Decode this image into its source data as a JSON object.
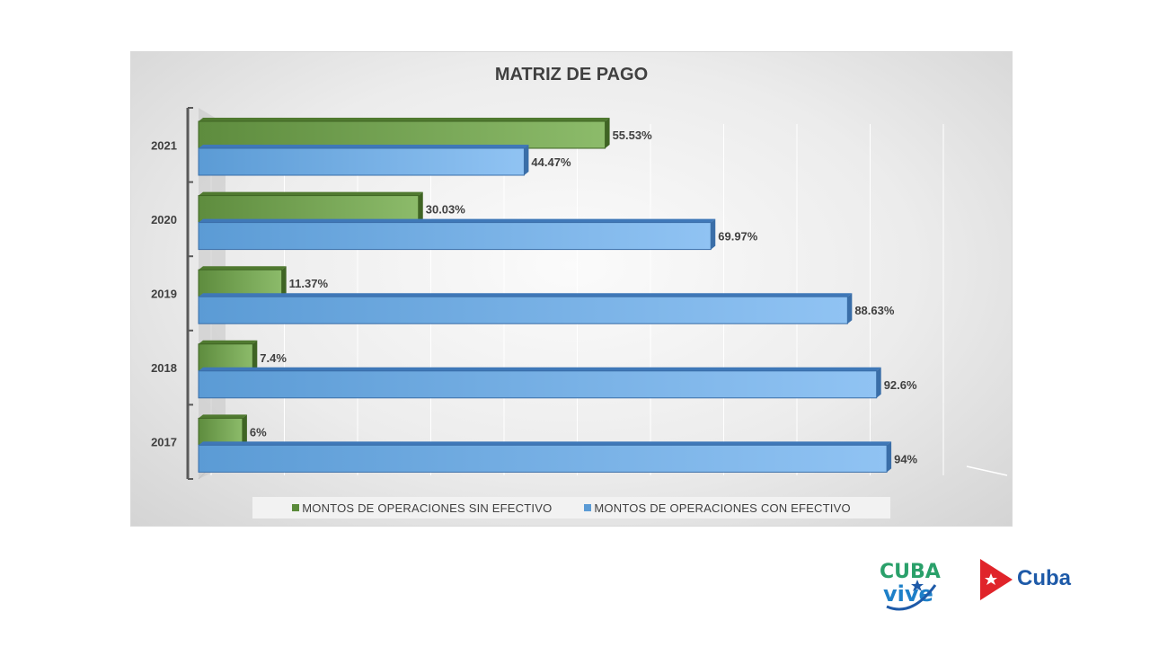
{
  "chart_data": {
    "type": "bar",
    "orientation": "horizontal",
    "title": "MATRIZ DE PAGO",
    "categories": [
      "2021",
      "2020",
      "2019",
      "2018",
      "2017"
    ],
    "series": [
      {
        "name": "MONTOS DE OPERACIONES SIN EFECTIVO",
        "values": [
          55.53,
          30.03,
          11.37,
          7.4,
          6
        ],
        "labels": [
          "55.53%",
          "30.03%",
          "11.37%",
          "7.4%",
          "6%"
        ],
        "color": "#70a050"
      },
      {
        "name": "MONTOS DE OPERACIONES CON EFECTIVO",
        "values": [
          44.47,
          69.97,
          88.63,
          92.6,
          94
        ],
        "labels": [
          "44.47%",
          "69.97%",
          "88.63%",
          "92.6%",
          "94%"
        ],
        "color": "#6fa8e0"
      }
    ],
    "xlim": [
      0,
      100
    ],
    "grid": true,
    "legend_position": "bottom"
  },
  "logos": {
    "cubavive_line1": "CUBA",
    "cubavive_line2": "vive",
    "cuba": "Cuba"
  }
}
